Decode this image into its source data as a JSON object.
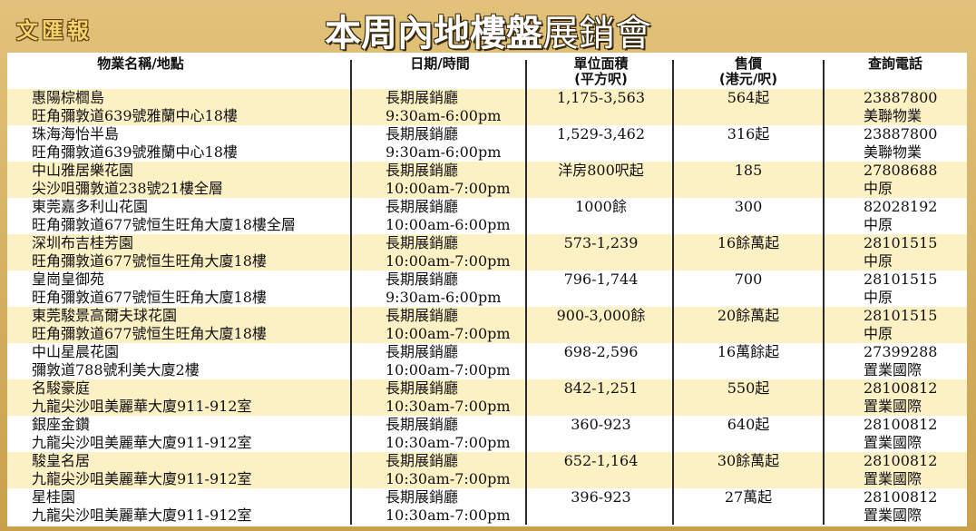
{
  "header": {
    "logo": "文匯報",
    "title_bold": "本周內地樓盤",
    "title_light": "展銷會"
  },
  "table": {
    "columns": [
      [
        "物業名稱/地點"
      ],
      [
        "日期/時間"
      ],
      [
        "單位面積",
        "(平方呎)"
      ],
      [
        "售價",
        "(港元/呎)"
      ],
      [
        "查詢電話"
      ]
    ],
    "rows": [
      {
        "name": "惠陽棕櫚島",
        "address": "旺角彌敦道639號雅蘭中心18樓",
        "hall": "長期展銷廳",
        "time": "9:30am-6:00pm",
        "area": "1,175-3,563",
        "price": "564起",
        "phone": "23887800",
        "agent": "美聯物業"
      },
      {
        "name": "珠海海怡半島",
        "address": "旺角彌敦道639號雅蘭中心18樓",
        "hall": "長期展銷廳",
        "time": "9:30am-6:00pm",
        "area": "1,529-3,462",
        "price": "316起",
        "phone": "23887800",
        "agent": "美聯物業"
      },
      {
        "name": "中山雅居樂花園",
        "address": "尖沙咀彌敦道238號21樓全層",
        "hall": "長期展銷廳",
        "time": "10:00am-7:00pm",
        "area": "洋房800呎起",
        "price": "185",
        "phone": "27808688",
        "agent": "中原"
      },
      {
        "name": "東莞嘉多利山花園",
        "address": "旺角彌敦道677號恒生旺角大廈18樓全層",
        "hall": "長期展銷廳",
        "time": "10:00am-6:00pm",
        "area": "1000餘",
        "price": "300",
        "phone": "82028192",
        "agent": "中原"
      },
      {
        "name": "深圳布吉桂芳園",
        "address": "旺角彌敦道677號恒生旺角大廈18樓",
        "hall": "長期展銷廳",
        "time": "10:00am-7:00pm",
        "area": "573-1,239",
        "price": "16餘萬起",
        "phone": "28101515",
        "agent": "中原"
      },
      {
        "name": "皇崗皇御苑",
        "address": "旺角彌敦道677號恒生旺角大廈18樓",
        "hall": "長期展銷廳",
        "time": "9:30am-6:00pm",
        "area": "796-1,744",
        "price": "700",
        "phone": "28101515",
        "agent": "中原"
      },
      {
        "name": "東莞駿景高爾夫球花園",
        "address": "旺角彌敦道677號恒生旺角大廈18樓",
        "hall": "長期展銷廳",
        "time": "10:00am-7:00pm",
        "area": "900-3,000餘",
        "price": "20餘萬起",
        "phone": "28101515",
        "agent": "中原"
      },
      {
        "name": "中山星晨花園",
        "address": "彌敦道788號利美大廈2樓",
        "hall": "長期展銷廳",
        "time": "10:00am-7:00pm",
        "area": "698-2,596",
        "price": "16萬餘起",
        "phone": "27399288",
        "agent": "置業國際"
      },
      {
        "name": "名駿豪庭",
        "address": "九龍尖沙咀美麗華大廈911-912室",
        "hall": "長期展銷廳",
        "time": "10:30am-7:00pm",
        "area": "842-1,251",
        "price": "550起",
        "phone": "28100812",
        "agent": "置業國際"
      },
      {
        "name": "銀座金鑽",
        "address": "九龍尖沙咀美麗華大廈911-912室",
        "hall": "長期展銷廳",
        "time": "10:30am-7:00pm",
        "area": "360-923",
        "price": "640起",
        "phone": "28100812",
        "agent": "置業國際"
      },
      {
        "name": "駿皇名居",
        "address": "九龍尖沙咀美麗華大廈911-912室",
        "hall": "長期展銷廳",
        "time": "10:30am-7:00pm",
        "area": "652-1,164",
        "price": "30餘萬起",
        "phone": "28100812",
        "agent": "置業國際"
      },
      {
        "name": "星桂園",
        "address": "九龍尖沙咀美麗華大廈911-912室",
        "hall": "長期展銷廳",
        "time": "10:30am-7:00pm",
        "area": "396-923",
        "price": "27萬起",
        "phone": "28100812",
        "agent": "置業國際"
      }
    ]
  }
}
